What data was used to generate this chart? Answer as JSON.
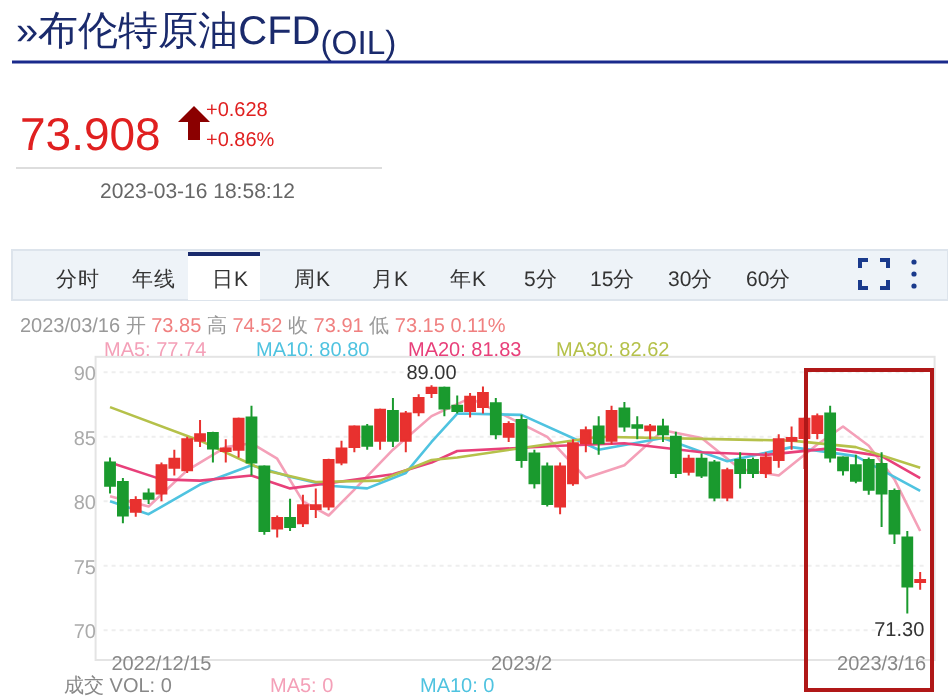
{
  "chart_data": {
    "type": "candlestick",
    "title": "»布伦特原油CFD$_{(OIL)}$",
    "categories": [
      null,
      null,
      null,
      null,
      "2022/12/15",
      null,
      null,
      null,
      null,
      null,
      null,
      null,
      null,
      null,
      null,
      null,
      null,
      null,
      null,
      null,
      null,
      null,
      null,
      null,
      null,
      null,
      null,
      null,
      null,
      null,
      null,
      null,
      "2023/2",
      null,
      null,
      null,
      null,
      null,
      null,
      null,
      null,
      null,
      null,
      null,
      null,
      null,
      null,
      null,
      null,
      null,
      null,
      null,
      null,
      null,
      null,
      null,
      null,
      null,
      null,
      null,
      "2023/3/16",
      null,
      null,
      null
    ],
    "ohlc": [
      [
        83.0,
        83.4,
        80.6,
        81.2
      ],
      [
        81.5,
        81.8,
        78.3,
        78.9
      ],
      [
        79.2,
        80.4,
        78.8,
        80.1
      ],
      [
        80.6,
        81.0,
        79.8,
        80.2
      ],
      [
        80.6,
        83.0,
        80.0,
        82.8
      ],
      [
        82.6,
        84.0,
        82.0,
        83.3
      ],
      [
        82.4,
        85.0,
        82.2,
        84.8
      ],
      [
        84.7,
        86.3,
        84.2,
        85.2
      ],
      [
        85.3,
        85.4,
        83.0,
        84.1
      ],
      [
        83.9,
        84.8,
        83.0,
        84.1
      ],
      [
        84.0,
        86.5,
        83.4,
        86.4
      ],
      [
        86.5,
        87.4,
        82.0,
        83.0
      ],
      [
        82.7,
        82.8,
        77.4,
        77.7
      ],
      [
        77.9,
        78.9,
        77.2,
        78.7
      ],
      [
        78.7,
        80.2,
        77.7,
        78.0
      ],
      [
        78.3,
        80.5,
        78.0,
        79.7
      ],
      [
        79.4,
        81.0,
        78.7,
        79.7
      ],
      [
        79.6,
        83.3,
        79.3,
        83.2
      ],
      [
        83.0,
        84.7,
        82.8,
        84.1
      ],
      [
        84.2,
        85.9,
        83.8,
        85.8
      ],
      [
        85.8,
        86.0,
        84.0,
        84.3
      ],
      [
        84.7,
        87.2,
        84.0,
        87.1
      ],
      [
        87.0,
        88.0,
        84.2,
        84.7
      ],
      [
        84.7,
        87.0,
        83.8,
        86.8
      ],
      [
        86.9,
        88.3,
        86.6,
        88.0
      ],
      [
        88.4,
        89.0,
        88.0,
        88.8
      ],
      [
        88.8,
        88.9,
        86.6,
        87.2
      ],
      [
        87.4,
        88.2,
        86.8,
        87.0
      ],
      [
        87.0,
        88.4,
        86.5,
        88.1
      ],
      [
        87.3,
        88.9,
        86.8,
        88.4
      ],
      [
        87.6,
        88.0,
        84.8,
        85.2
      ],
      [
        85.0,
        86.2,
        84.6,
        86.0
      ],
      [
        86.3,
        86.7,
        82.6,
        83.2
      ],
      [
        83.7,
        84.0,
        81.0,
        81.4
      ],
      [
        82.7,
        83.0,
        79.6,
        79.8
      ],
      [
        79.6,
        83.0,
        79.0,
        82.7
      ],
      [
        81.4,
        84.8,
        81.2,
        84.5
      ],
      [
        84.5,
        85.8,
        83.8,
        85.5
      ],
      [
        85.8,
        86.6,
        83.6,
        84.5
      ],
      [
        84.7,
        87.4,
        84.4,
        87.0
      ],
      [
        87.2,
        87.7,
        85.4,
        85.8
      ],
      [
        85.9,
        86.6,
        84.8,
        85.7
      ],
      [
        85.5,
        86.0,
        84.8,
        85.8
      ],
      [
        85.8,
        86.4,
        84.6,
        85.2
      ],
      [
        85.0,
        85.4,
        81.8,
        82.2
      ],
      [
        82.3,
        83.6,
        82.0,
        83.3
      ],
      [
        83.3,
        83.7,
        81.8,
        82.0
      ],
      [
        83.0,
        83.2,
        80.0,
        80.3
      ],
      [
        80.3,
        82.6,
        80.0,
        82.4
      ],
      [
        83.2,
        83.8,
        81.0,
        82.2
      ],
      [
        83.2,
        83.4,
        81.8,
        82.2
      ],
      [
        82.2,
        83.8,
        81.8,
        83.4
      ],
      [
        83.2,
        85.2,
        82.6,
        84.8
      ],
      [
        84.7,
        85.8,
        84.0,
        84.9
      ],
      [
        84.9,
        86.5,
        82.5,
        86.4
      ],
      [
        85.3,
        86.8,
        84.8,
        86.6
      ],
      [
        86.8,
        87.4,
        83.0,
        83.4
      ],
      [
        83.4,
        83.5,
        82.0,
        82.4
      ],
      [
        82.8,
        83.6,
        81.4,
        81.6
      ],
      [
        83.2,
        83.4,
        80.5,
        80.9
      ],
      [
        82.9,
        83.8,
        78.0,
        80.6
      ],
      [
        80.8,
        81.0,
        76.7,
        77.5
      ],
      [
        77.2,
        77.7,
        71.3,
        73.4
      ],
      [
        73.85,
        74.52,
        73.15,
        73.91
      ]
    ],
    "series": [
      {
        "name": "MA5: 77.74",
        "type": "line",
        "color": "#f4a0b8",
        "values": [
          80.4,
          null,
          null,
          79.6,
          null,
          null,
          82.4,
          null,
          null,
          84.2,
          null,
          84.5,
          null,
          83.3,
          null,
          80.0,
          null,
          78.9,
          null,
          80.9,
          null,
          null,
          84.0,
          null,
          null,
          86.6,
          null,
          null,
          88.0,
          null,
          null,
          86.5,
          null,
          null,
          85.0,
          null,
          null,
          81.8,
          null,
          null,
          82.8,
          null,
          null,
          85.5,
          null,
          null,
          84.9,
          null,
          null,
          82.5,
          null,
          null,
          82.0,
          null,
          null,
          84.4,
          null,
          85.8,
          null,
          84.3,
          null,
          81.7,
          null,
          77.7
        ]
      },
      {
        "name": "MA10: 80.80",
        "type": "line",
        "color": "#4fc3e0",
        "values": [
          80.0,
          null,
          null,
          79.0,
          null,
          null,
          null,
          81.3,
          null,
          null,
          null,
          82.8,
          null,
          null,
          81.9,
          null,
          null,
          81.2,
          null,
          null,
          81.0,
          null,
          null,
          82.2,
          null,
          84.6,
          null,
          86.8,
          null,
          null,
          null,
          null,
          86.7,
          null,
          null,
          null,
          null,
          null,
          84.0,
          null,
          null,
          null,
          null,
          84.9,
          null,
          null,
          null,
          null,
          83.1,
          null,
          null,
          null,
          null,
          84.2,
          null,
          null,
          null,
          null,
          83.5,
          null,
          null,
          null,
          null,
          80.8
        ]
      },
      {
        "name": "MA20: 81.83",
        "type": "line",
        "color": "#e8407a",
        "values": [
          83.0,
          null,
          null,
          null,
          81.7,
          null,
          null,
          81.6,
          null,
          null,
          null,
          82.0,
          null,
          null,
          81.0,
          null,
          null,
          81.4,
          null,
          null,
          null,
          null,
          82.1,
          null,
          null,
          83.0,
          null,
          83.9,
          null,
          null,
          null,
          null,
          null,
          null,
          null,
          84.3,
          null,
          null,
          null,
          null,
          84.5,
          null,
          null,
          null,
          null,
          null,
          83.8,
          null,
          null,
          null,
          null,
          83.6,
          null,
          null,
          null,
          null,
          84.1,
          null,
          null,
          null,
          83.5,
          null,
          null,
          81.8
        ]
      },
      {
        "name": "MA30: 82.62",
        "type": "line",
        "color": "#b5c14a",
        "values": [
          87.3,
          null,
          null,
          null,
          null,
          null,
          null,
          84.7,
          null,
          null,
          null,
          null,
          82.4,
          null,
          null,
          null,
          81.5,
          null,
          null,
          null,
          null,
          81.6,
          null,
          null,
          null,
          83.2,
          null,
          83.4,
          null,
          null,
          null,
          null,
          null,
          null,
          null,
          null,
          null,
          null,
          85.0,
          null,
          null,
          null,
          null,
          null,
          null,
          null,
          null,
          null,
          84.8,
          null,
          null,
          null,
          null,
          84.7,
          null,
          null,
          null,
          null,
          84.2,
          null,
          null,
          null,
          null,
          82.6
        ]
      }
    ],
    "ylim": [
      67.7,
      91.2
    ],
    "yticks": [
      70,
      75,
      80,
      85,
      90
    ],
    "grid": "y",
    "legend": "top",
    "annotations": [
      "73.908",
      "+0.628",
      "+0.86%",
      "2023-03-16 18:58:12",
      "分时",
      "年线",
      "日K",
      "周K",
      "月K",
      "年K",
      "5分",
      "15分",
      "30分",
      "60分",
      "2023/03/16 开 73.85 高 74.52 收 73.91 低 73.15 0.11%",
      "成交 VOL: 0",
      "MA5: 0",
      "MA10: 0",
      {
        "text": "89.00",
        "y": 89.0
      },
      "71.30"
    ]
  }
}
